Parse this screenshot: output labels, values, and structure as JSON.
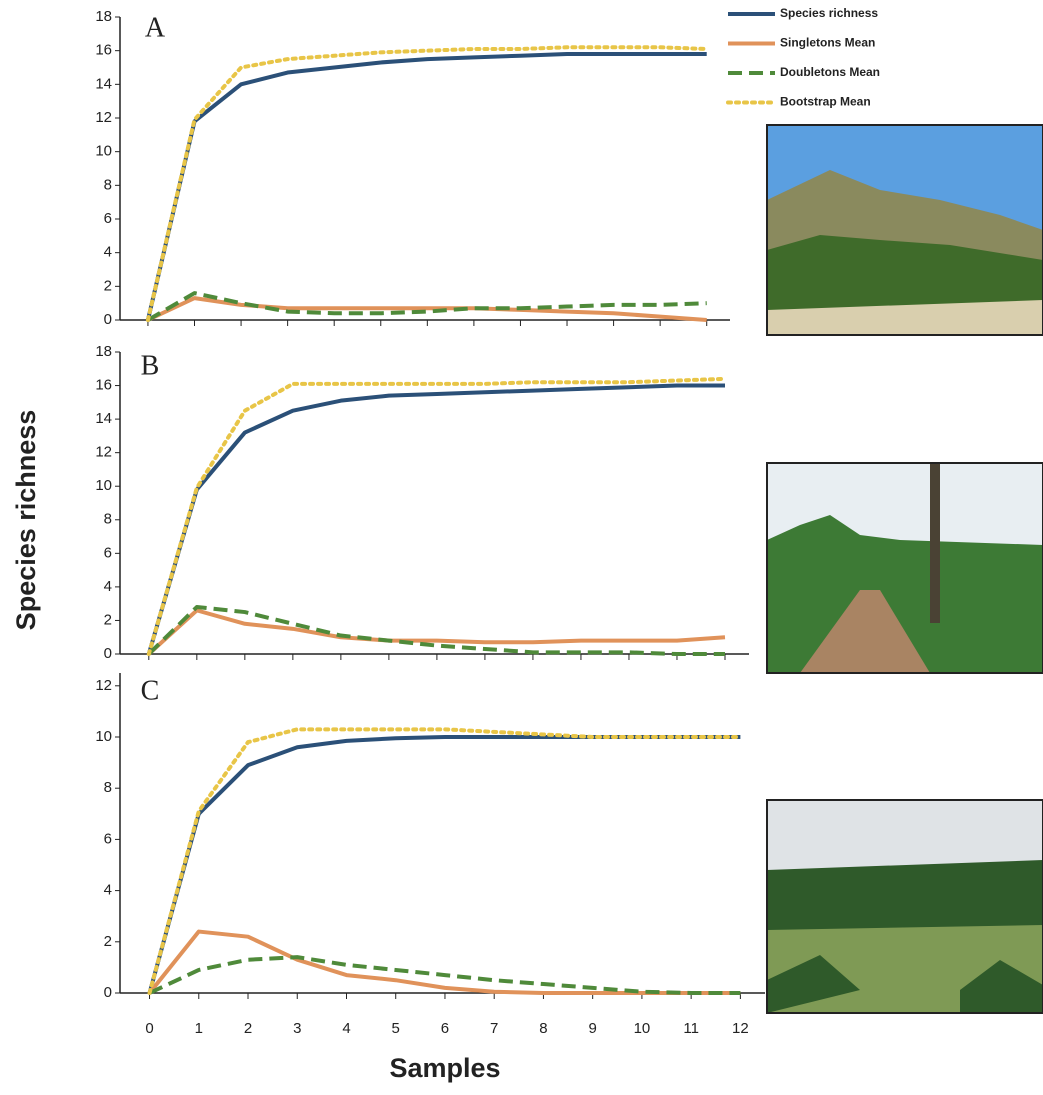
{
  "chart_data": [
    {
      "type": "line",
      "title": "A",
      "x": [
        0,
        1,
        2,
        3,
        4,
        5,
        6,
        7,
        8,
        9,
        10,
        11,
        12
      ],
      "xlim": [
        -0.6,
        12.5
      ],
      "ylim": [
        0,
        18
      ],
      "yticks": [
        0,
        2,
        4,
        6,
        8,
        10,
        12,
        14,
        16,
        18
      ],
      "legend": "upper right",
      "series": [
        {
          "name": "Species richness",
          "color": "#2b5078",
          "style": "solid",
          "values": [
            0,
            11.8,
            14,
            14.7,
            15,
            15.3,
            15.5,
            15.6,
            15.7,
            15.8,
            15.8,
            15.8,
            15.8
          ]
        },
        {
          "name": "Singletons Mean",
          "color": "#e0925a",
          "style": "solid",
          "values": [
            0,
            1.3,
            0.9,
            0.7,
            0.7,
            0.7,
            0.7,
            0.7,
            0.6,
            0.5,
            0.4,
            0.2,
            0
          ]
        },
        {
          "name": "Doubletons Mean",
          "color": "#4f8a3a",
          "style": "dashed",
          "values": [
            0,
            1.6,
            1.0,
            0.5,
            0.4,
            0.4,
            0.5,
            0.7,
            0.7,
            0.8,
            0.9,
            0.9,
            1.0
          ]
        },
        {
          "name": "Bootstrap Mean",
          "color": "#e8c547",
          "style": "dotted",
          "values": [
            0,
            11.9,
            15,
            15.5,
            15.7,
            15.9,
            16,
            16.1,
            16.1,
            16.2,
            16.2,
            16.2,
            16.1
          ]
        }
      ]
    },
    {
      "type": "line",
      "title": "B",
      "ylabel": "Species richness",
      "x": [
        0,
        1,
        2,
        3,
        4,
        5,
        6,
        7,
        8,
        9,
        10,
        11,
        12
      ],
      "xlim": [
        -0.6,
        12.5
      ],
      "ylim": [
        0,
        18
      ],
      "yticks": [
        0,
        2,
        4,
        6,
        8,
        10,
        12,
        14,
        16,
        18
      ],
      "series": [
        {
          "color": "#2b5078",
          "style": "solid",
          "values": [
            0,
            9.8,
            13.2,
            14.5,
            15.1,
            15.4,
            15.5,
            15.6,
            15.7,
            15.8,
            15.9,
            16,
            16
          ]
        },
        {
          "color": "#e0925a",
          "style": "solid",
          "values": [
            0,
            2.6,
            1.8,
            1.5,
            1,
            0.8,
            0.8,
            0.7,
            0.7,
            0.8,
            0.8,
            0.8,
            1
          ]
        },
        {
          "color": "#4f8a3a",
          "style": "dashed",
          "values": [
            0,
            2.8,
            2.5,
            1.8,
            1.1,
            0.8,
            0.5,
            0.3,
            0.1,
            0.1,
            0.1,
            0,
            0
          ]
        },
        {
          "color": "#e8c547",
          "style": "dotted",
          "values": [
            0,
            9.9,
            14.5,
            16.1,
            16.1,
            16.1,
            16.1,
            16.1,
            16.2,
            16.2,
            16.2,
            16.3,
            16.4
          ]
        }
      ]
    },
    {
      "type": "line",
      "title": "C",
      "xlabel": "Samples",
      "x": [
        0,
        1,
        2,
        3,
        4,
        5,
        6,
        7,
        8,
        9,
        10,
        11,
        12
      ],
      "xlim": [
        -0.6,
        12.5
      ],
      "xticks": [
        0,
        1,
        2,
        3,
        4,
        5,
        6,
        7,
        8,
        9,
        10,
        11,
        12
      ],
      "ylim": [
        0,
        12.5
      ],
      "yticks": [
        0,
        2,
        4,
        6,
        8,
        10,
        12
      ],
      "series": [
        {
          "color": "#2b5078",
          "style": "solid",
          "values": [
            0,
            7,
            8.9,
            9.6,
            9.85,
            9.95,
            10,
            10,
            10,
            10,
            10,
            10,
            10
          ]
        },
        {
          "color": "#e0925a",
          "style": "solid",
          "values": [
            0,
            2.4,
            2.2,
            1.3,
            0.7,
            0.5,
            0.2,
            0.05,
            0,
            0,
            0,
            0,
            0
          ]
        },
        {
          "color": "#4f8a3a",
          "style": "dashed",
          "values": [
            0,
            0.9,
            1.3,
            1.4,
            1.1,
            0.9,
            0.7,
            0.5,
            0.35,
            0.2,
            0.05,
            0,
            0
          ]
        },
        {
          "color": "#e8c547",
          "style": "dotted",
          "values": [
            0,
            7.1,
            9.8,
            10.3,
            10.3,
            10.3,
            10.3,
            10.2,
            10.1,
            10,
            10,
            10,
            10
          ]
        }
      ]
    }
  ]
}
